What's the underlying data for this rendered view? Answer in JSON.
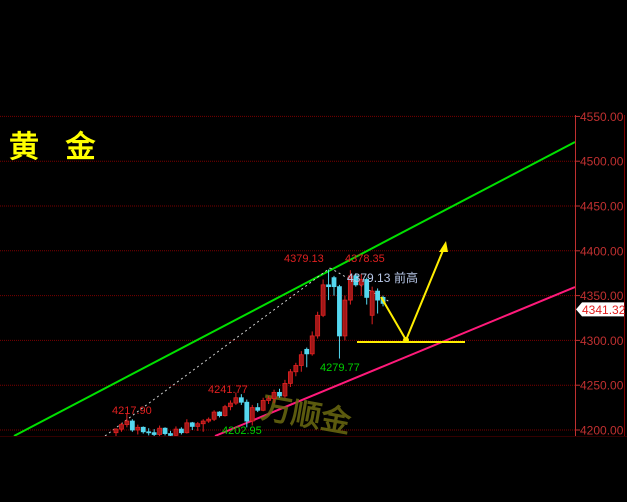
{
  "title": "黄 金",
  "watermark": "万顺金",
  "chart_data": {
    "type": "candlestick",
    "ylim": [
      4190,
      4555
    ],
    "yticks": [
      "4200.00",
      "4250.00",
      "4300.00",
      "4350.00",
      "4400.00",
      "4450.00",
      "4500.00",
      "4550.00"
    ],
    "grid": true,
    "current_price": "4341.32",
    "colors": {
      "up": "#e02020",
      "down": "#55d8f0",
      "grid": "#7a0000",
      "axis": "#c03030",
      "upper_channel": "#00e000",
      "lower_channel": "#ff1a7a",
      "projection": "#ffee00"
    },
    "candles": [
      [
        4197,
        4202,
        4190,
        4201
      ],
      [
        4201,
        4208,
        4198,
        4206
      ],
      [
        4206,
        4217.9,
        4203,
        4210
      ],
      [
        4210,
        4212,
        4198,
        4200
      ],
      [
        4200,
        4206,
        4195,
        4203
      ],
      [
        4203,
        4204,
        4196,
        4198
      ],
      [
        4198,
        4202,
        4194,
        4197
      ],
      [
        4197,
        4201,
        4192,
        4195
      ],
      [
        4195,
        4205,
        4193,
        4202
      ],
      [
        4202,
        4203,
        4194,
        4196
      ],
      [
        4196,
        4199,
        4190,
        4194
      ],
      [
        4194,
        4204,
        4193,
        4201
      ],
      [
        4201,
        4203,
        4195,
        4197
      ],
      [
        4197,
        4212,
        4196,
        4208
      ],
      [
        4208,
        4209,
        4200,
        4204
      ],
      [
        4204,
        4209,
        4199,
        4207
      ],
      [
        4207,
        4212,
        4198,
        4210
      ],
      [
        4210,
        4214,
        4208,
        4212
      ],
      [
        4212,
        4222,
        4210,
        4220
      ],
      [
        4220,
        4221,
        4214,
        4216
      ],
      [
        4216,
        4228,
        4215,
        4226
      ],
      [
        4226,
        4233,
        4222,
        4230
      ],
      [
        4230,
        4241.77,
        4228,
        4236
      ],
      [
        4236,
        4240,
        4228,
        4231
      ],
      [
        4231,
        4234,
        4202.95,
        4210
      ],
      [
        4210,
        4228,
        4205,
        4225
      ],
      [
        4225,
        4230,
        4220,
        4222
      ],
      [
        4222,
        4236,
        4221,
        4233
      ],
      [
        4233,
        4238,
        4229,
        4235
      ],
      [
        4235,
        4245,
        4230,
        4242
      ],
      [
        4242,
        4246,
        4236,
        4238
      ],
      [
        4238,
        4256,
        4236,
        4252
      ],
      [
        4252,
        4268,
        4248,
        4265
      ],
      [
        4265,
        4275,
        4260,
        4272
      ],
      [
        4272,
        4288,
        4265,
        4284
      ],
      [
        4290,
        4292,
        4270,
        4285
      ],
      [
        4285,
        4310,
        4283,
        4305
      ],
      [
        4305,
        4332,
        4302,
        4328
      ],
      [
        4328,
        4368,
        4326,
        4362
      ],
      [
        4362,
        4379.13,
        4345,
        4360
      ],
      [
        4370,
        4372,
        4350,
        4360
      ],
      [
        4360,
        4362,
        4279.77,
        4305
      ],
      [
        4305,
        4350,
        4300,
        4345
      ],
      [
        4345,
        4378.35,
        4340,
        4372
      ],
      [
        4372,
        4375,
        4360,
        4362
      ],
      [
        4362,
        4374,
        4350,
        4368
      ],
      [
        4368,
        4370,
        4340,
        4348
      ],
      [
        4328,
        4360,
        4318,
        4355
      ],
      [
        4355,
        4358,
        4330,
        4345
      ],
      [
        4348,
        4350,
        4338,
        4341.32
      ]
    ],
    "annotations": [
      {
        "text": "4217.90",
        "price": 4217.9,
        "color": "#e02020"
      },
      {
        "text": "4241.77",
        "price": 4241.77,
        "color": "#e02020"
      },
      {
        "text": "4202.95",
        "price": 4202.95,
        "color": "#00d000"
      },
      {
        "text": "4279.77",
        "price": 4279.77,
        "color": "#00d000"
      },
      {
        "text": "4379.13",
        "price": 4379.13,
        "color": "#e02020"
      },
      {
        "text": "4378.35",
        "price": 4378.35,
        "color": "#e02020"
      },
      {
        "text": "4379.13",
        "price": 4379.13,
        "color": "#b8c8e8"
      },
      {
        "text": "前高",
        "color": "#b8c8e8"
      }
    ]
  }
}
